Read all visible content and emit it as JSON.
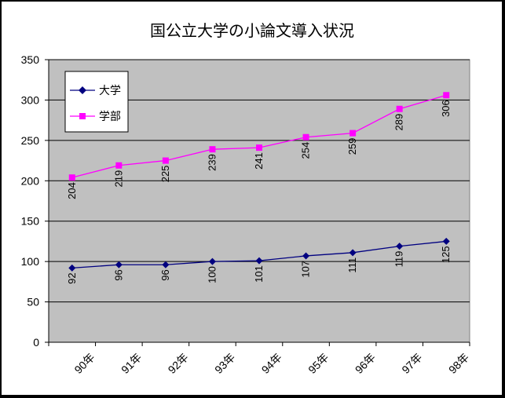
{
  "chart_data": {
    "type": "line",
    "title": "国公立大学の小論文導入状況",
    "categories": [
      "90年",
      "91年",
      "92年",
      "93年",
      "94年",
      "95年",
      "96年",
      "97年",
      "98年"
    ],
    "series": [
      {
        "name": "大学",
        "values": [
          92,
          96,
          96,
          100,
          101,
          107,
          111,
          119,
          125
        ],
        "color": "#000080",
        "marker": "diamond"
      },
      {
        "name": "学部",
        "values": [
          204,
          219,
          225,
          239,
          241,
          254,
          259,
          289,
          306
        ],
        "color": "#FF00FF",
        "marker": "square"
      }
    ],
    "yticks": [
      "0",
      "50",
      "100",
      "150",
      "200",
      "250",
      "300",
      "350"
    ],
    "ylim": [
      0,
      350
    ],
    "xlabel": "",
    "ylabel": "",
    "grid": true,
    "legend": "top-left",
    "plot_background": "#C0C0C0"
  }
}
